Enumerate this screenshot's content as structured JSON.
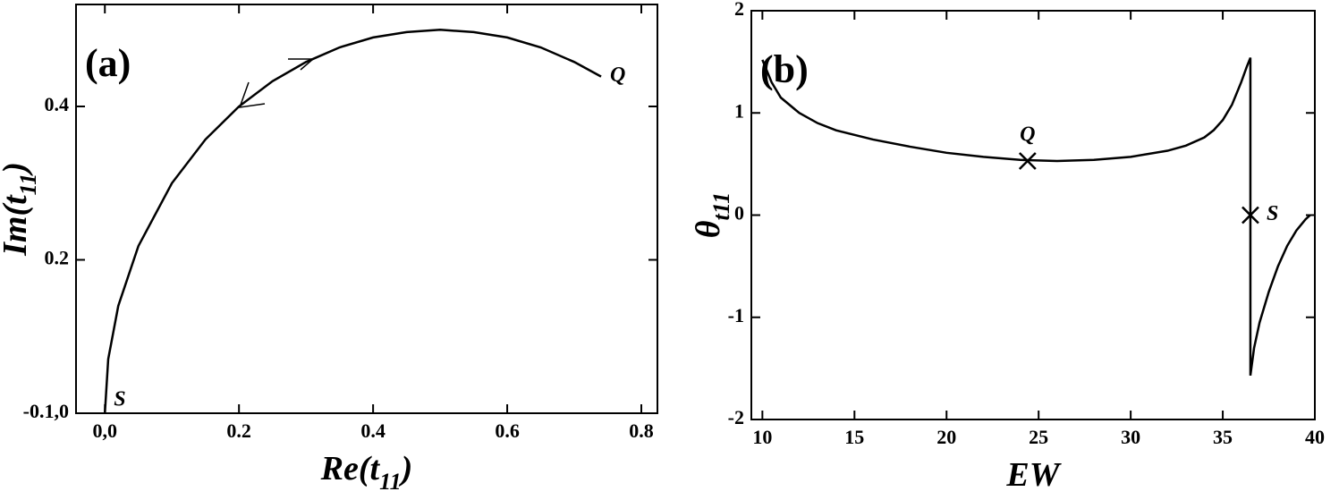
{
  "chart_data": [
    {
      "type": "line",
      "panel": "(a)",
      "xlabel": [
        "Re(t",
        "11",
        ")"
      ],
      "ylabel": [
        "Im(t",
        "11",
        ")"
      ],
      "x": [
        0,
        0.005,
        0.02,
        0.05,
        0.1,
        0.15,
        0.2,
        0.25,
        0.3,
        0.35,
        0.4,
        0.45,
        0.5,
        0.55,
        0.6,
        0.65,
        0.7,
        0.74
      ],
      "values": [
        0,
        0.0705,
        0.14,
        0.218,
        0.3,
        0.357,
        0.4,
        0.433,
        0.458,
        0.477,
        0.49,
        0.497,
        0.5,
        0.497,
        0.49,
        0.477,
        0.458,
        0.439
      ],
      "color": "#000000",
      "xlim": [
        -0.043,
        0.824
      ],
      "ylim": [
        0,
        0.533
      ],
      "xticks": [
        {
          "value": 0,
          "label": "0,0"
        },
        0.2,
        0.4,
        0.6,
        0.8
      ],
      "yticks": [
        {
          "value": 0,
          "label": "-0.1,0"
        },
        0.2,
        0.4
      ],
      "annotations": [
        {
          "text": "Q",
          "x": 0.74,
          "y": 0.439
        },
        {
          "text": "S",
          "x": 0.0,
          "y": 0.0
        }
      ]
    },
    {
      "type": "line",
      "panel": "(b)",
      "xlabel": [
        "EW"
      ],
      "ylabel": [
        "θ",
        "t11"
      ],
      "x": [
        10,
        10.5,
        11,
        12,
        13,
        14,
        16,
        18,
        20,
        22,
        24,
        26,
        28,
        30,
        32,
        33,
        34,
        34.5,
        35,
        35.5,
        36,
        36.3,
        36.5,
        36.5,
        36.7,
        37,
        37.5,
        38,
        38.5,
        39,
        39.5,
        39.75
      ],
      "values": [
        1.52,
        1.3,
        1.15,
        1.0,
        0.9,
        0.83,
        0.74,
        0.67,
        0.61,
        0.57,
        0.54,
        0.53,
        0.54,
        0.57,
        0.63,
        0.68,
        0.76,
        0.83,
        0.93,
        1.08,
        1.3,
        1.45,
        1.54,
        -1.57,
        -1.3,
        -1.05,
        -0.75,
        -0.5,
        -0.3,
        -0.15,
        -0.04,
        0
      ],
      "color": "#000000",
      "xlim": [
        9.4,
        40
      ],
      "ylim": [
        -2,
        2
      ],
      "xticks": [
        10,
        15,
        20,
        25,
        30,
        35,
        40
      ],
      "yticks": [
        -2,
        -1,
        0,
        1,
        2
      ],
      "markers": [
        {
          "label": "Q",
          "x": 24.4,
          "y": 0.53
        },
        {
          "label": "S",
          "x": 36.5,
          "y": 0
        }
      ]
    }
  ]
}
